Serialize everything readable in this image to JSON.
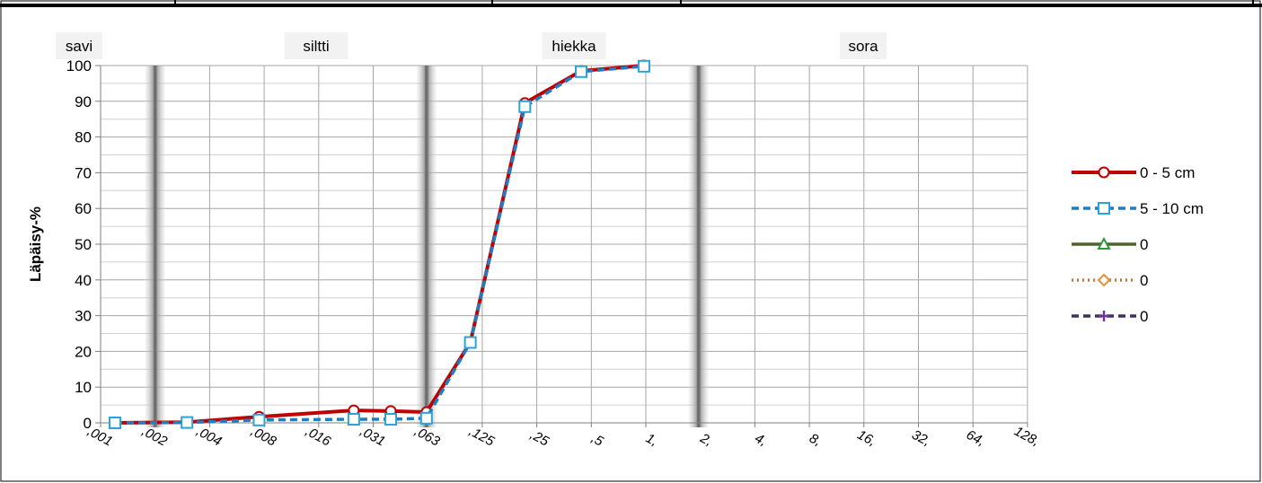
{
  "chart_data": {
    "type": "line",
    "ylabel": "Läpäisy-%",
    "xlabel": "",
    "ylim": [
      0,
      100
    ],
    "ytick_step": 10,
    "x_scale": "log2 (equal spacing per tick)",
    "x_ticks": [
      ",001",
      ",002",
      ",004",
      ",008",
      ",016",
      ",031",
      ",063",
      ",125",
      ",25",
      ",5",
      "1,",
      "2,",
      "4,",
      "8,",
      "16,",
      "32,",
      "64,",
      "128,"
    ],
    "zones": [
      {
        "label": "savi"
      },
      {
        "label": "siltti"
      },
      {
        "label": "hiekka"
      },
      {
        "label": "sora"
      }
    ],
    "zone_boundaries": [
      0.002,
      0.063,
      2
    ],
    "grid": "on",
    "legend_position": "right",
    "series": [
      {
        "name": "0 - 5 cm",
        "color": "#c00000",
        "marker": "circle",
        "dash": "solid",
        "x": [
          0.0012,
          0.003,
          0.0075,
          0.025,
          0.04,
          0.063,
          0.11,
          0.22,
          0.45,
          1.0
        ],
        "y": [
          0,
          0.2,
          1.7,
          3.5,
          3.3,
          3.0,
          22.5,
          89.5,
          98.5,
          100
        ]
      },
      {
        "name": "5 - 10 cm",
        "color": "#1f7ec2",
        "marker": "square",
        "dash": "dashed",
        "x": [
          0.0012,
          0.003,
          0.0075,
          0.025,
          0.04,
          0.063,
          0.11,
          0.22,
          0.45,
          1.0
        ],
        "y": [
          0,
          0.1,
          0.8,
          1.0,
          1.0,
          1.3,
          22.5,
          88.5,
          98.3,
          99.8
        ]
      },
      {
        "name": "0",
        "color": "#4f6228",
        "marker": "triangle",
        "dash": "solid",
        "x": [],
        "y": []
      },
      {
        "name": "0",
        "color": "#c07a3a",
        "marker": "diamond",
        "dash": "dotted",
        "x": [],
        "y": []
      },
      {
        "name": "0",
        "color": "#3f3060",
        "marker": "plus",
        "dash": "dashed",
        "x": [],
        "y": []
      }
    ]
  }
}
